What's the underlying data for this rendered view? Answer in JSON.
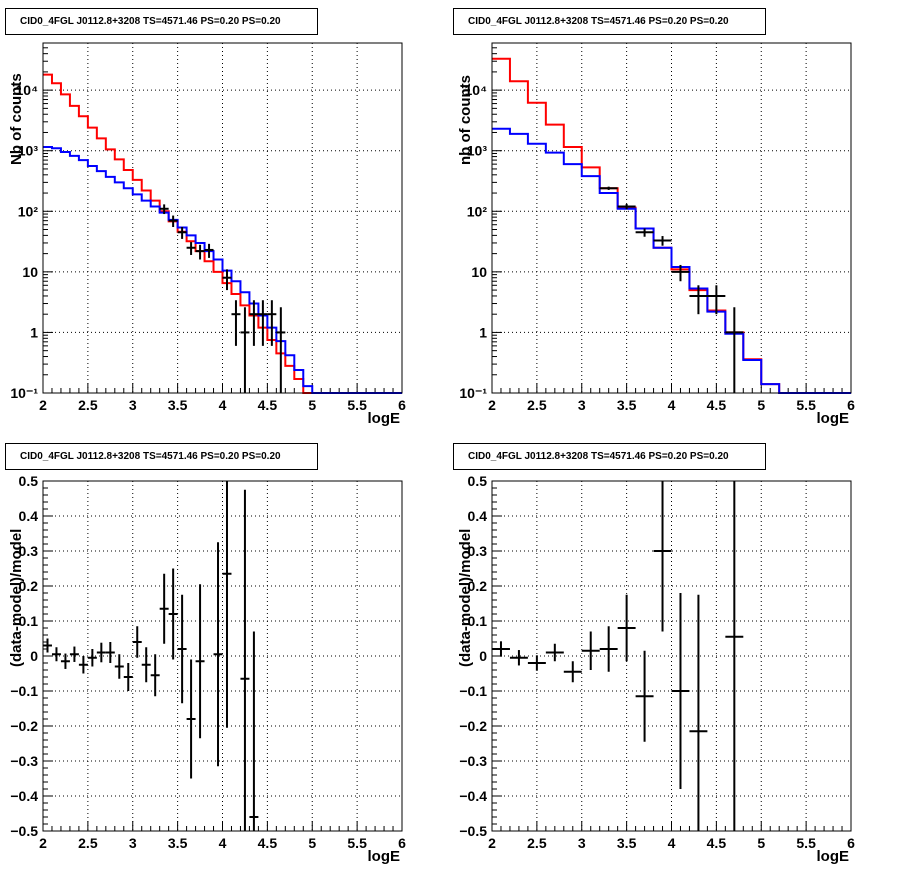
{
  "chart_data": [
    {
      "type": "line",
      "title": "CID0_4FGL J0112.8+3208 TS=4571.46 PS=0.20 PS=0.20",
      "xlabel": "logE",
      "ylabel": "Nb of counts",
      "xlim": [
        2,
        6
      ],
      "ylim": [
        0.1,
        60000
      ],
      "yscale": "log",
      "grid": true,
      "x_ticks": [
        "2",
        "2.5",
        "3",
        "3.5",
        "4",
        "4.5",
        "5",
        "5.5",
        "6"
      ],
      "y_ticks": [
        "10⁻¹",
        "1",
        "10",
        "10²",
        "10³",
        "10⁴"
      ],
      "bin_edges": [
        2,
        2.1,
        2.2,
        2.3,
        2.4,
        2.5,
        2.6,
        2.7,
        2.8,
        2.9,
        3.0,
        3.1,
        3.2,
        3.3,
        3.4,
        3.5,
        3.6,
        3.7,
        3.8,
        3.9,
        4.0,
        4.1,
        4.2,
        4.3,
        4.4,
        4.5,
        4.6,
        4.7,
        4.8,
        4.9,
        5.0,
        5.1,
        5.2,
        5.3,
        5.4,
        5.5,
        5.6,
        5.7,
        5.8,
        5.9,
        6.0
      ],
      "series": [
        {
          "color": "#ff0000",
          "style": "step",
          "values": [
            18000,
            13000,
            8500,
            5500,
            3700,
            2400,
            1600,
            1050,
            720,
            480,
            330,
            220,
            150,
            100,
            68,
            46,
            32,
            22,
            15,
            10,
            6.5,
            4.3,
            2.8,
            1.9,
            1.2,
            0.75,
            0.45,
            0.28,
            0.17,
            0.1,
            0.1,
            0.1,
            0.1,
            0.1,
            0.1,
            0.1,
            0.1,
            0.1,
            0.1,
            0.1
          ]
        },
        {
          "color": "#0000ff",
          "style": "step",
          "values": [
            1150,
            1100,
            950,
            820,
            700,
            560,
            460,
            370,
            300,
            240,
            190,
            150,
            120,
            95,
            72,
            54,
            40,
            30,
            22,
            16,
            10.5,
            7,
            4.6,
            3,
            1.9,
            1.2,
            0.72,
            0.42,
            0.24,
            0.13,
            0.1,
            0.1,
            0.1,
            0.1,
            0.1,
            0.1,
            0.1,
            0.1,
            0.1,
            0.1
          ]
        },
        {
          "color": "#000000",
          "style": "errorbar",
          "points": [
            {
              "x": 3.35,
              "y": 110,
              "ylo": 90,
              "yhi": 130
            },
            {
              "x": 3.45,
              "y": 70,
              "ylo": 55,
              "yhi": 85
            },
            {
              "x": 3.55,
              "y": 45,
              "ylo": 35,
              "yhi": 55
            },
            {
              "x": 3.65,
              "y": 25,
              "ylo": 19,
              "yhi": 31
            },
            {
              "x": 3.75,
              "y": 22,
              "ylo": 16,
              "yhi": 28
            },
            {
              "x": 3.85,
              "y": 23,
              "ylo": 17,
              "yhi": 29
            },
            {
              "x": 4.05,
              "y": 8,
              "ylo": 5,
              "yhi": 11
            },
            {
              "x": 4.15,
              "y": 2,
              "ylo": 0.6,
              "yhi": 3.4
            },
            {
              "x": 4.25,
              "y": 1,
              "ylo": 0.1,
              "yhi": 2.6
            },
            {
              "x": 4.35,
              "y": 2,
              "ylo": 0.6,
              "yhi": 3.4
            },
            {
              "x": 4.45,
              "y": 2,
              "ylo": 0.6,
              "yhi": 3.4
            },
            {
              "x": 4.55,
              "y": 2,
              "ylo": 0.6,
              "yhi": 3.4
            },
            {
              "x": 4.65,
              "y": 1,
              "ylo": 0.1,
              "yhi": 2.6
            }
          ]
        }
      ]
    },
    {
      "type": "line",
      "title": "CID0_4FGL J0112.8+3208 TS=4571.46 PS=0.20 PS=0.20",
      "xlabel": "logE",
      "ylabel": "nb of counts",
      "xlim": [
        2,
        6
      ],
      "ylim": [
        0.1,
        60000
      ],
      "yscale": "log",
      "grid": true,
      "x_ticks": [
        "2",
        "2.5",
        "3",
        "3.5",
        "4",
        "4.5",
        "5",
        "5.5",
        "6"
      ],
      "y_ticks": [
        "10⁻¹",
        "1",
        "10",
        "10²",
        "10³",
        "10⁴"
      ],
      "bin_edges": [
        2,
        2.2,
        2.4,
        2.6,
        2.8,
        3.0,
        3.2,
        3.4,
        3.6,
        3.8,
        4.0,
        4.2,
        4.4,
        4.6,
        4.8,
        5.0,
        5.2,
        5.4,
        5.6,
        5.8,
        6.0
      ],
      "series": [
        {
          "color": "#ff0000",
          "style": "step",
          "values": [
            33000,
            14000,
            6200,
            2700,
            1150,
            530,
            240,
            115,
            52,
            25,
            11,
            5,
            2.3,
            1.0,
            0.36,
            0.14,
            0.1,
            0.1,
            0.1,
            0.1
          ]
        },
        {
          "color": "#0000ff",
          "style": "step",
          "values": [
            2300,
            1900,
            1300,
            930,
            600,
            380,
            200,
            110,
            52,
            25,
            12,
            5.3,
            2.2,
            0.95,
            0.35,
            0.14,
            0.1,
            0.1,
            0.1,
            0.1
          ]
        },
        {
          "color": "#000000",
          "style": "errorbar",
          "points": [
            {
              "x": 3.3,
              "y": 240,
              "ylo": 225,
              "yhi": 255
            },
            {
              "x": 3.5,
              "y": 120,
              "ylo": 108,
              "yhi": 132
            },
            {
              "x": 3.7,
              "y": 45,
              "ylo": 38,
              "yhi": 52
            },
            {
              "x": 3.9,
              "y": 33,
              "ylo": 27,
              "yhi": 39
            },
            {
              "x": 4.1,
              "y": 10,
              "ylo": 7,
              "yhi": 13
            },
            {
              "x": 4.3,
              "y": 4,
              "ylo": 2,
              "yhi": 6
            },
            {
              "x": 4.5,
              "y": 4,
              "ylo": 2,
              "yhi": 6
            },
            {
              "x": 4.7,
              "y": 1,
              "ylo": 0.1,
              "yhi": 2.6
            }
          ]
        }
      ]
    },
    {
      "type": "scatter",
      "title": "CID0_4FGL J0112.8+3208 TS=4571.46 PS=0.20 PS=0.20",
      "xlabel": "logE",
      "ylabel": "(data-model)/model",
      "xlim": [
        2,
        6
      ],
      "ylim": [
        -0.5,
        0.5
      ],
      "grid": true,
      "x_ticks": [
        "2",
        "2.5",
        "3",
        "3.5",
        "4",
        "4.5",
        "5",
        "5.5",
        "6"
      ],
      "y_ticks": [
        "−0.5",
        "−0.4",
        "−0.3",
        "−0.2",
        "−0.1",
        "0",
        "0.1",
        "0.2",
        "0.3",
        "0.4",
        "0.5"
      ],
      "half_width": 0.05,
      "series": [
        {
          "color": "#000000",
          "style": "errorbar",
          "points": [
            {
              "x": 2.05,
              "y": 0.03,
              "err": 0.02
            },
            {
              "x": 2.15,
              "y": 0.005,
              "err": 0.02
            },
            {
              "x": 2.25,
              "y": -0.015,
              "err": 0.022
            },
            {
              "x": 2.35,
              "y": 0.005,
              "err": 0.022
            },
            {
              "x": 2.45,
              "y": -0.025,
              "err": 0.025
            },
            {
              "x": 2.55,
              "y": -0.005,
              "err": 0.025
            },
            {
              "x": 2.65,
              "y": 0.01,
              "err": 0.028
            },
            {
              "x": 2.75,
              "y": 0.01,
              "err": 0.03
            },
            {
              "x": 2.85,
              "y": -0.03,
              "err": 0.035
            },
            {
              "x": 2.95,
              "y": -0.06,
              "err": 0.04
            },
            {
              "x": 3.05,
              "y": 0.04,
              "err": 0.045
            },
            {
              "x": 3.15,
              "y": -0.025,
              "err": 0.05
            },
            {
              "x": 3.25,
              "y": -0.055,
              "err": 0.06
            },
            {
              "x": 3.35,
              "y": 0.135,
              "err": 0.1
            },
            {
              "x": 3.45,
              "y": 0.12,
              "err": 0.13
            },
            {
              "x": 3.55,
              "y": 0.02,
              "err": 0.155
            },
            {
              "x": 3.65,
              "y": -0.18,
              "err": 0.17
            },
            {
              "x": 3.75,
              "y": -0.015,
              "err": 0.22
            },
            {
              "x": 3.95,
              "y": 0.005,
              "err": 0.32
            },
            {
              "x": 4.05,
              "y": 0.235,
              "err": 0.44
            },
            {
              "x": 4.25,
              "y": -0.065,
              "err": 0.54
            },
            {
              "x": 4.35,
              "y": -0.46,
              "err": 0.53
            }
          ]
        }
      ]
    },
    {
      "type": "scatter",
      "title": "CID0_4FGL J0112.8+3208 TS=4571.46 PS=0.20 PS=0.20",
      "xlabel": "logE",
      "ylabel": "(data-model)/model",
      "xlim": [
        2,
        6
      ],
      "ylim": [
        -0.5,
        0.5
      ],
      "grid": true,
      "x_ticks": [
        "2",
        "2.5",
        "3",
        "3.5",
        "4",
        "4.5",
        "5",
        "5.5",
        "6"
      ],
      "y_ticks": [
        "−0.5",
        "−0.4",
        "−0.3",
        "−0.2",
        "−0.1",
        "0",
        "0.1",
        "0.2",
        "0.3",
        "0.4",
        "0.5"
      ],
      "half_width": 0.1,
      "series": [
        {
          "color": "#000000",
          "style": "errorbar",
          "points": [
            {
              "x": 2.1,
              "y": 0.02,
              "err": 0.022
            },
            {
              "x": 2.3,
              "y": -0.005,
              "err": 0.022
            },
            {
              "x": 2.5,
              "y": -0.02,
              "err": 0.022
            },
            {
              "x": 2.7,
              "y": 0.01,
              "err": 0.025
            },
            {
              "x": 2.9,
              "y": -0.045,
              "err": 0.03
            },
            {
              "x": 3.1,
              "y": 0.015,
              "err": 0.055
            },
            {
              "x": 3.3,
              "y": 0.02,
              "err": 0.065
            },
            {
              "x": 3.5,
              "y": 0.08,
              "err": 0.095
            },
            {
              "x": 3.7,
              "y": -0.115,
              "err": 0.13
            },
            {
              "x": 3.9,
              "y": 0.3,
              "err": 0.23
            },
            {
              "x": 4.1,
              "y": -0.1,
              "err": 0.28
            },
            {
              "x": 4.3,
              "y": -0.215,
              "err": 0.39
            },
            {
              "x": 4.7,
              "y": 0.055,
              "err": 0.56
            }
          ]
        }
      ]
    }
  ]
}
